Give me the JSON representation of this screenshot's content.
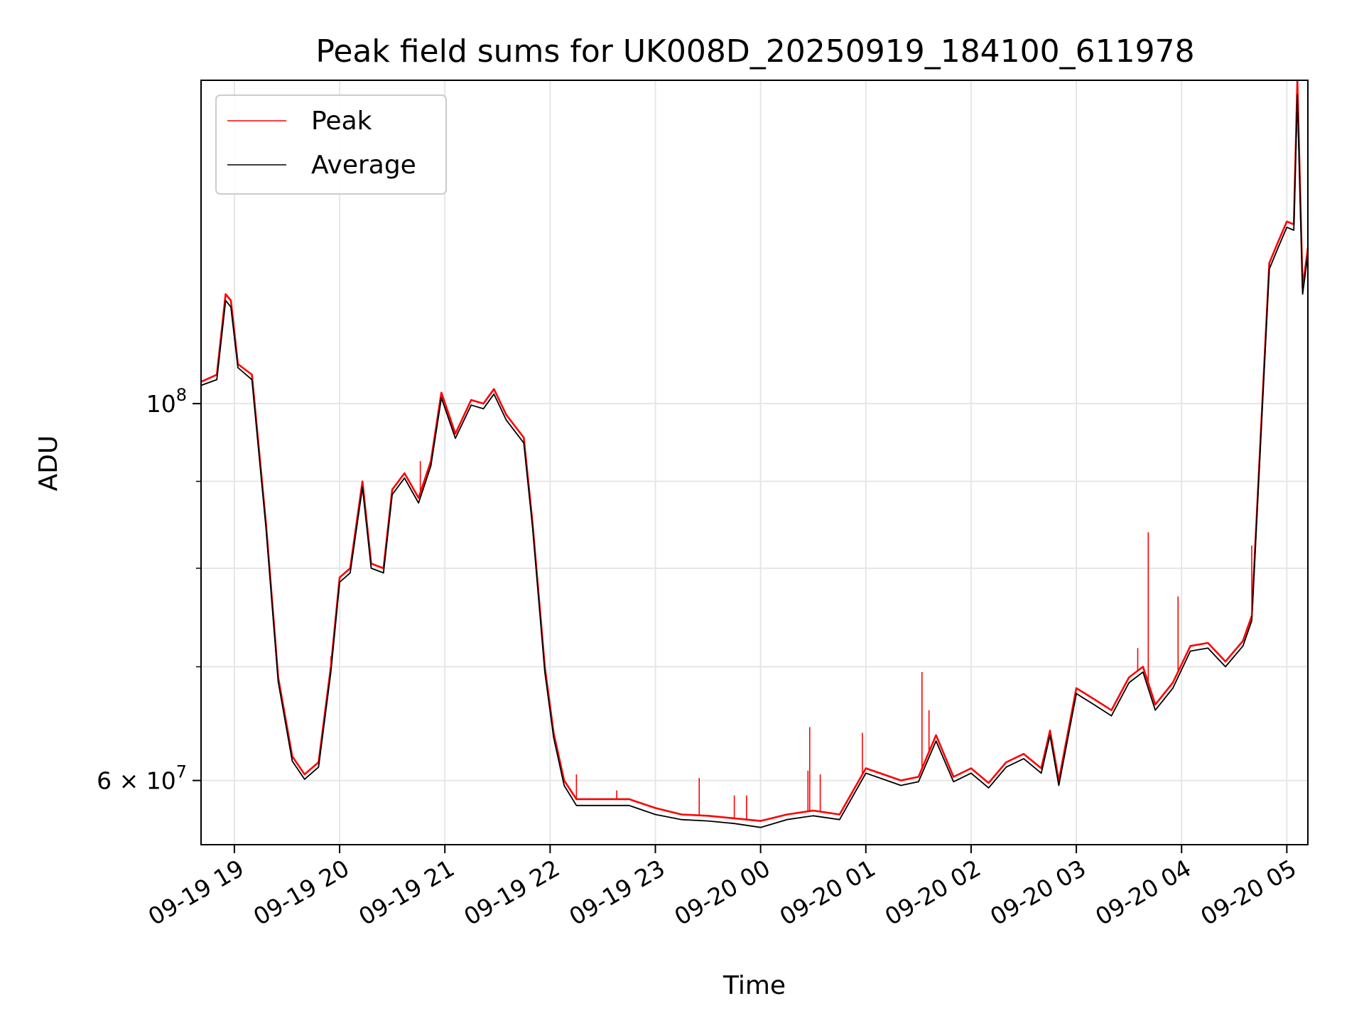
{
  "chart_data": {
    "type": "line",
    "title": "Peak field sums for UK008D_20250919_184100_611978",
    "xlabel": "Time",
    "ylabel": "ADU",
    "y_scale": "log",
    "ylim": [
      55000000,
      155000000
    ],
    "xlim": [
      "2025-09-19 18:41",
      "2025-09-20 05:12"
    ],
    "grid": true,
    "legend_position": "top-left",
    "x_ticks": [
      {
        "t": "2025-09-19 19:00",
        "label": "09-19 19"
      },
      {
        "t": "2025-09-19 20:00",
        "label": "09-19 20"
      },
      {
        "t": "2025-09-19 21:00",
        "label": "09-19 21"
      },
      {
        "t": "2025-09-19 22:00",
        "label": "09-19 22"
      },
      {
        "t": "2025-09-19 23:00",
        "label": "09-19 23"
      },
      {
        "t": "2025-09-20 00:00",
        "label": "09-20 00"
      },
      {
        "t": "2025-09-20 01:00",
        "label": "09-20 01"
      },
      {
        "t": "2025-09-20 02:00",
        "label": "09-20 02"
      },
      {
        "t": "2025-09-20 03:00",
        "label": "09-20 03"
      },
      {
        "t": "2025-09-20 04:00",
        "label": "09-20 04"
      },
      {
        "t": "2025-09-20 05:00",
        "label": "09-20 05"
      }
    ],
    "y_ticks_major": [
      {
        "value": 60000000,
        "base": "6 × 10",
        "exp": "7"
      },
      {
        "value": 100000000,
        "base": "10",
        "exp": "8"
      }
    ],
    "y_ticks_minor": [
      70000000,
      80000000,
      90000000
    ],
    "series": [
      {
        "name": "Peak",
        "color": "#ff0000",
        "points": [
          [
            "2025-09-19 18:41",
            103000000
          ],
          [
            "2025-09-19 18:50",
            104000000
          ],
          [
            "2025-09-19 18:55",
            116000000
          ],
          [
            "2025-09-19 18:58",
            115000000
          ],
          [
            "2025-09-19 19:02",
            105500000
          ],
          [
            "2025-09-19 19:10",
            104000000
          ],
          [
            "2025-09-19 19:18",
            85000000
          ],
          [
            "2025-09-19 19:25",
            69000000
          ],
          [
            "2025-09-19 19:33",
            62000000
          ],
          [
            "2025-09-19 19:40",
            60500000
          ],
          [
            "2025-09-19 19:48",
            61500000
          ],
          [
            "2025-09-19 19:55",
            70000000
          ],
          [
            "2025-09-19 20:00",
            79000000
          ],
          [
            "2025-09-19 20:06",
            80000000
          ],
          [
            "2025-09-19 20:13",
            90000000
          ],
          [
            "2025-09-19 20:18",
            80500000
          ],
          [
            "2025-09-19 20:25",
            80000000
          ],
          [
            "2025-09-19 20:30",
            89000000
          ],
          [
            "2025-09-19 20:37",
            91000000
          ],
          [
            "2025-09-19 20:45",
            88000000
          ],
          [
            "2025-09-19 20:52",
            92500000
          ],
          [
            "2025-09-19 20:58",
            101500000
          ],
          [
            "2025-09-19 21:06",
            96000000
          ],
          [
            "2025-09-19 21:15",
            100500000
          ],
          [
            "2025-09-19 21:22",
            100000000
          ],
          [
            "2025-09-19 21:28",
            102000000
          ],
          [
            "2025-09-19 21:35",
            98500000
          ],
          [
            "2025-09-19 21:45",
            95500000
          ],
          [
            "2025-09-19 21:50",
            85000000
          ],
          [
            "2025-09-19 21:57",
            70000000
          ],
          [
            "2025-09-19 22:02",
            64000000
          ],
          [
            "2025-09-19 22:08",
            60000000
          ],
          [
            "2025-09-19 22:15",
            58500000
          ],
          [
            "2025-09-19 22:30",
            58500000
          ],
          [
            "2025-09-19 22:45",
            58500000
          ],
          [
            "2025-09-19 23:00",
            57800000
          ],
          [
            "2025-09-19 23:15",
            57300000
          ],
          [
            "2025-09-19 23:30",
            57200000
          ],
          [
            "2025-09-19 23:45",
            57000000
          ],
          [
            "2025-09-20 00:00",
            56800000
          ],
          [
            "2025-09-20 00:15",
            57300000
          ],
          [
            "2025-09-20 00:30",
            57600000
          ],
          [
            "2025-09-20 00:45",
            57300000
          ],
          [
            "2025-09-20 01:00",
            61000000
          ],
          [
            "2025-09-20 01:10",
            60500000
          ],
          [
            "2025-09-20 01:20",
            60000000
          ],
          [
            "2025-09-20 01:30",
            60300000
          ],
          [
            "2025-09-20 01:40",
            63800000
          ],
          [
            "2025-09-20 01:50",
            60300000
          ],
          [
            "2025-09-20 02:00",
            61000000
          ],
          [
            "2025-09-20 02:10",
            59800000
          ],
          [
            "2025-09-20 02:20",
            61500000
          ],
          [
            "2025-09-20 02:30",
            62200000
          ],
          [
            "2025-09-20 02:40",
            61000000
          ],
          [
            "2025-09-20 02:45",
            64200000
          ],
          [
            "2025-09-20 02:50",
            60000000
          ],
          [
            "2025-09-20 03:00",
            68000000
          ],
          [
            "2025-09-20 03:10",
            67000000
          ],
          [
            "2025-09-20 03:20",
            66000000
          ],
          [
            "2025-09-20 03:30",
            69000000
          ],
          [
            "2025-09-20 03:38",
            70000000
          ],
          [
            "2025-09-20 03:45",
            66500000
          ],
          [
            "2025-09-20 03:55",
            68500000
          ],
          [
            "2025-09-20 04:05",
            72000000
          ],
          [
            "2025-09-20 04:15",
            72300000
          ],
          [
            "2025-09-20 04:25",
            70500000
          ],
          [
            "2025-09-20 04:35",
            72500000
          ],
          [
            "2025-09-20 04:40",
            75000000
          ],
          [
            "2025-09-20 04:46",
            100000000
          ],
          [
            "2025-09-20 04:50",
            121000000
          ],
          [
            "2025-09-20 04:55",
            124500000
          ],
          [
            "2025-09-20 05:00",
            128000000
          ],
          [
            "2025-09-20 05:04",
            127500000
          ],
          [
            "2025-09-20 05:06",
            155000000
          ],
          [
            "2025-09-20 05:09",
            117000000
          ],
          [
            "2025-09-20 05:12",
            123500000
          ]
        ]
      },
      {
        "name": "Average",
        "color": "#000000",
        "points": [
          [
            "2025-09-19 18:41",
            102500000
          ],
          [
            "2025-09-19 18:50",
            103300000
          ],
          [
            "2025-09-19 18:55",
            115000000
          ],
          [
            "2025-09-19 18:58",
            114000000
          ],
          [
            "2025-09-19 19:02",
            105000000
          ],
          [
            "2025-09-19 19:10",
            103300000
          ],
          [
            "2025-09-19 19:18",
            84500000
          ],
          [
            "2025-09-19 19:25",
            68600000
          ],
          [
            "2025-09-19 19:33",
            61600000
          ],
          [
            "2025-09-19 19:40",
            60100000
          ],
          [
            "2025-09-19 19:48",
            61100000
          ],
          [
            "2025-09-19 19:55",
            69500000
          ],
          [
            "2025-09-19 20:00",
            78500000
          ],
          [
            "2025-09-19 20:06",
            79500000
          ],
          [
            "2025-09-19 20:13",
            89300000
          ],
          [
            "2025-09-19 20:18",
            80000000
          ],
          [
            "2025-09-19 20:25",
            79500000
          ],
          [
            "2025-09-19 20:30",
            88400000
          ],
          [
            "2025-09-19 20:37",
            90400000
          ],
          [
            "2025-09-19 20:45",
            87400000
          ],
          [
            "2025-09-19 20:52",
            91900000
          ],
          [
            "2025-09-19 20:58",
            100800000
          ],
          [
            "2025-09-19 21:06",
            95400000
          ],
          [
            "2025-09-19 21:15",
            99800000
          ],
          [
            "2025-09-19 21:22",
            99300000
          ],
          [
            "2025-09-19 21:28",
            101300000
          ],
          [
            "2025-09-19 21:35",
            97800000
          ],
          [
            "2025-09-19 21:45",
            94800000
          ],
          [
            "2025-09-19 21:50",
            84500000
          ],
          [
            "2025-09-19 21:57",
            69500000
          ],
          [
            "2025-09-19 22:02",
            63600000
          ],
          [
            "2025-09-19 22:08",
            59600000
          ],
          [
            "2025-09-19 22:15",
            58000000
          ],
          [
            "2025-09-19 22:30",
            58000000
          ],
          [
            "2025-09-19 22:45",
            58000000
          ],
          [
            "2025-09-19 23:00",
            57300000
          ],
          [
            "2025-09-19 23:15",
            56900000
          ],
          [
            "2025-09-19 23:30",
            56800000
          ],
          [
            "2025-09-19 23:45",
            56600000
          ],
          [
            "2025-09-20 00:00",
            56300000
          ],
          [
            "2025-09-20 00:15",
            56900000
          ],
          [
            "2025-09-20 00:30",
            57200000
          ],
          [
            "2025-09-20 00:45",
            56900000
          ],
          [
            "2025-09-20 01:00",
            60600000
          ],
          [
            "2025-09-20 01:10",
            60100000
          ],
          [
            "2025-09-20 01:20",
            59600000
          ],
          [
            "2025-09-20 01:30",
            59900000
          ],
          [
            "2025-09-20 01:40",
            63300000
          ],
          [
            "2025-09-20 01:50",
            59900000
          ],
          [
            "2025-09-20 02:00",
            60600000
          ],
          [
            "2025-09-20 02:10",
            59400000
          ],
          [
            "2025-09-20 02:20",
            61100000
          ],
          [
            "2025-09-20 02:30",
            61800000
          ],
          [
            "2025-09-20 02:40",
            60600000
          ],
          [
            "2025-09-20 02:45",
            63800000
          ],
          [
            "2025-09-20 02:50",
            59600000
          ],
          [
            "2025-09-20 03:00",
            67500000
          ],
          [
            "2025-09-20 03:10",
            66500000
          ],
          [
            "2025-09-20 03:20",
            65500000
          ],
          [
            "2025-09-20 03:30",
            68500000
          ],
          [
            "2025-09-20 03:38",
            69500000
          ],
          [
            "2025-09-20 03:45",
            66000000
          ],
          [
            "2025-09-20 03:55",
            68000000
          ],
          [
            "2025-09-20 04:05",
            71500000
          ],
          [
            "2025-09-20 04:15",
            71800000
          ],
          [
            "2025-09-20 04:25",
            70000000
          ],
          [
            "2025-09-20 04:35",
            72000000
          ],
          [
            "2025-09-20 04:40",
            74500000
          ],
          [
            "2025-09-20 04:46",
            99300000
          ],
          [
            "2025-09-20 04:50",
            120000000
          ],
          [
            "2025-09-20 04:55",
            123500000
          ],
          [
            "2025-09-20 05:00",
            127000000
          ],
          [
            "2025-09-20 05:04",
            126500000
          ],
          [
            "2025-09-20 05:06",
            152000000
          ],
          [
            "2025-09-20 05:09",
            116000000
          ],
          [
            "2025-09-20 05:12",
            122500000
          ]
        ]
      }
    ],
    "spikes": [
      {
        "t": "2025-09-19 19:55",
        "value": 71000000
      },
      {
        "t": "2025-09-19 20:46",
        "value": 92500000
      },
      {
        "t": "2025-09-19 22:15",
        "value": 60500000
      },
      {
        "t": "2025-09-19 22:38",
        "value": 59200000
      },
      {
        "t": "2025-09-19 23:25",
        "value": 60200000
      },
      {
        "t": "2025-09-19 23:45",
        "value": 58800000
      },
      {
        "t": "2025-09-19 23:52",
        "value": 58800000
      },
      {
        "t": "2025-09-20 00:27",
        "value": 60800000
      },
      {
        "t": "2025-09-20 00:28",
        "value": 64500000
      },
      {
        "t": "2025-09-20 00:34",
        "value": 60500000
      },
      {
        "t": "2025-09-20 00:58",
        "value": 64000000
      },
      {
        "t": "2025-09-20 01:32",
        "value": 69500000
      },
      {
        "t": "2025-09-20 01:36",
        "value": 66000000
      },
      {
        "t": "2025-09-20 03:35",
        "value": 71800000
      },
      {
        "t": "2025-09-20 03:41",
        "value": 84000000
      },
      {
        "t": "2025-09-20 03:58",
        "value": 77000000
      },
      {
        "t": "2025-09-20 04:40",
        "value": 82500000
      }
    ]
  }
}
